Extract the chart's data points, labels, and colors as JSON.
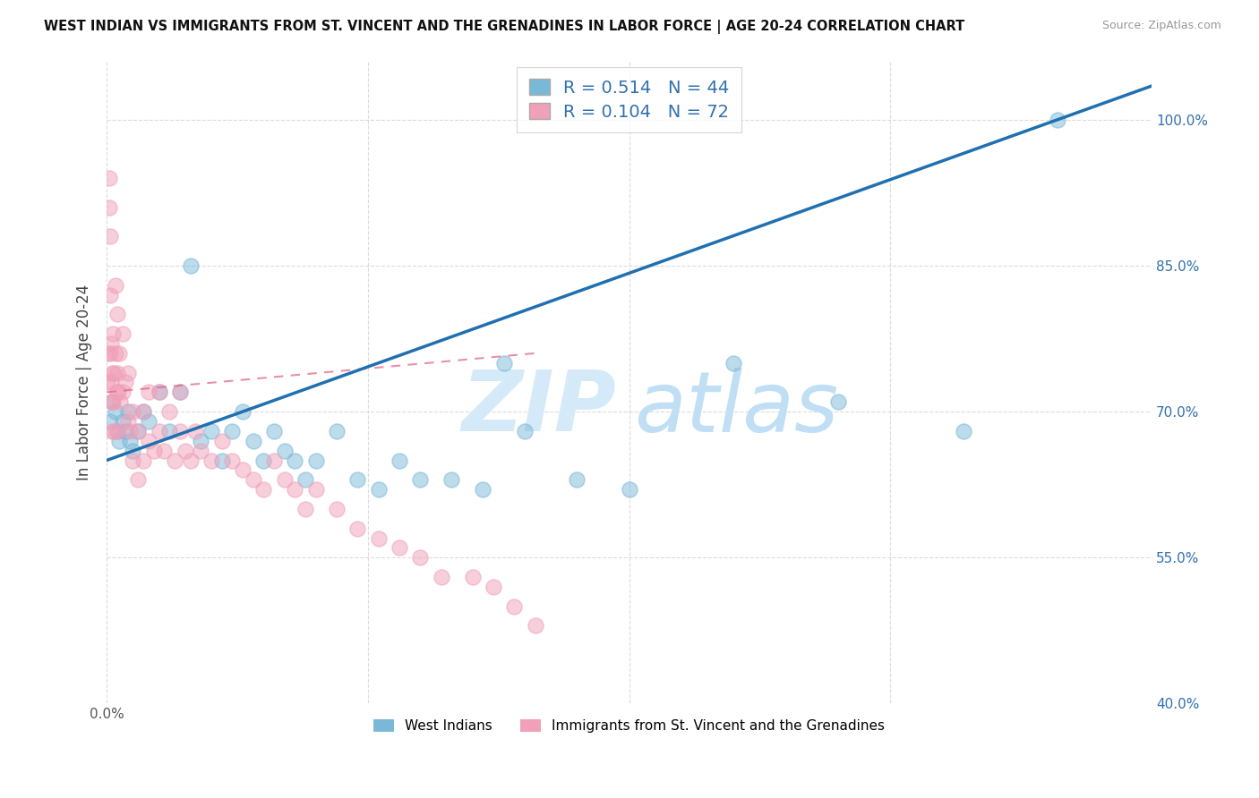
{
  "title": "WEST INDIAN VS IMMIGRANTS FROM ST. VINCENT AND THE GRENADINES IN LABOR FORCE | AGE 20-24 CORRELATION CHART",
  "source": "Source: ZipAtlas.com",
  "ylabel": "In Labor Force | Age 20-24",
  "R_blue": 0.514,
  "N_blue": 44,
  "R_pink": 0.104,
  "N_pink": 72,
  "blue_color": "#7ab8d8",
  "pink_color": "#f0a0b8",
  "blue_line_color": "#2070b0",
  "pink_line_color": "#e06080",
  "watermark_zip_color": "#d5eaf8",
  "watermark_atlas_color": "#c0dff5",
  "blue_points_x": [
    0.3,
    0.5,
    0.8,
    1.0,
    1.2,
    1.5,
    1.8,
    2.0,
    2.2,
    2.5,
    3.0,
    3.5,
    4.0,
    5.0,
    6.0,
    7.0,
    8.0,
    9.0,
    10.0,
    11.0,
    12.0,
    13.0,
    14.0,
    15.0,
    16.0,
    17.0,
    18.0,
    19.0,
    20.0,
    22.0,
    24.0,
    26.0,
    28.0,
    30.0,
    33.0,
    36.0,
    38.0,
    40.0,
    45.0,
    50.0,
    60.0,
    70.0,
    82.0,
    91.0
  ],
  "blue_points_y": [
    69.0,
    71.0,
    70.0,
    68.0,
    67.0,
    69.0,
    68.0,
    70.0,
    67.0,
    66.0,
    68.0,
    70.0,
    69.0,
    72.0,
    68.0,
    72.0,
    85.0,
    67.0,
    68.0,
    65.0,
    68.0,
    70.0,
    67.0,
    65.0,
    68.0,
    66.0,
    65.0,
    63.0,
    65.0,
    68.0,
    63.0,
    62.0,
    65.0,
    63.0,
    63.0,
    62.0,
    75.0,
    68.0,
    63.0,
    62.0,
    75.0,
    71.0,
    68.0,
    100.0
  ],
  "pink_points_x": [
    0.1,
    0.1,
    0.2,
    0.2,
    0.3,
    0.3,
    0.3,
    0.4,
    0.4,
    0.5,
    0.5,
    0.5,
    0.6,
    0.6,
    0.7,
    0.7,
    0.8,
    0.8,
    0.9,
    1.0,
    1.0,
    1.0,
    1.1,
    1.2,
    1.3,
    1.5,
    1.5,
    1.8,
    2.0,
    2.0,
    2.2,
    2.5,
    2.5,
    3.0,
    3.0,
    3.5,
    3.5,
    4.0,
    4.0,
    4.5,
    5.0,
    5.0,
    5.5,
    6.0,
    6.5,
    7.0,
    7.0,
    7.5,
    8.0,
    8.5,
    9.0,
    10.0,
    11.0,
    12.0,
    13.0,
    14.0,
    15.0,
    16.0,
    17.0,
    18.0,
    19.0,
    20.0,
    22.0,
    24.0,
    26.0,
    28.0,
    30.0,
    32.0,
    35.0,
    37.0,
    39.0,
    41.0
  ],
  "pink_points_y": [
    73.0,
    76.0,
    91.0,
    94.0,
    88.0,
    76.0,
    82.0,
    73.0,
    77.0,
    71.0,
    74.0,
    68.0,
    78.0,
    71.0,
    74.0,
    68.0,
    83.0,
    76.0,
    72.0,
    80.0,
    74.0,
    68.0,
    72.0,
    76.0,
    71.0,
    72.0,
    78.0,
    73.0,
    69.0,
    74.0,
    68.0,
    70.0,
    65.0,
    68.0,
    63.0,
    65.0,
    70.0,
    67.0,
    72.0,
    66.0,
    68.0,
    72.0,
    66.0,
    70.0,
    65.0,
    68.0,
    72.0,
    66.0,
    65.0,
    68.0,
    66.0,
    65.0,
    67.0,
    65.0,
    64.0,
    63.0,
    62.0,
    65.0,
    63.0,
    62.0,
    60.0,
    62.0,
    60.0,
    58.0,
    57.0,
    56.0,
    55.0,
    53.0,
    53.0,
    52.0,
    50.0,
    48.0
  ],
  "xlim": [
    0.0,
    100.0
  ],
  "ylim": [
    40.0,
    106.0
  ],
  "yticks": [
    40.0,
    55.0,
    70.0,
    85.0,
    100.0
  ],
  "ytick_labels": [
    "40.0%",
    "55.0%",
    "70.0%",
    "85.0%",
    "100.0%"
  ],
  "xticks": [
    0.0,
    25.0,
    50.0,
    75.0,
    100.0
  ],
  "grid_color": "#cccccc",
  "bg_color": "#ffffff",
  "blue_line_x0": 0.0,
  "blue_line_y0": 65.0,
  "blue_line_x1": 91.0,
  "blue_line_y1": 100.0,
  "pink_line_x0": 0.0,
  "pink_line_y0": 72.0,
  "pink_line_x1": 41.0,
  "pink_line_y1": 76.0
}
